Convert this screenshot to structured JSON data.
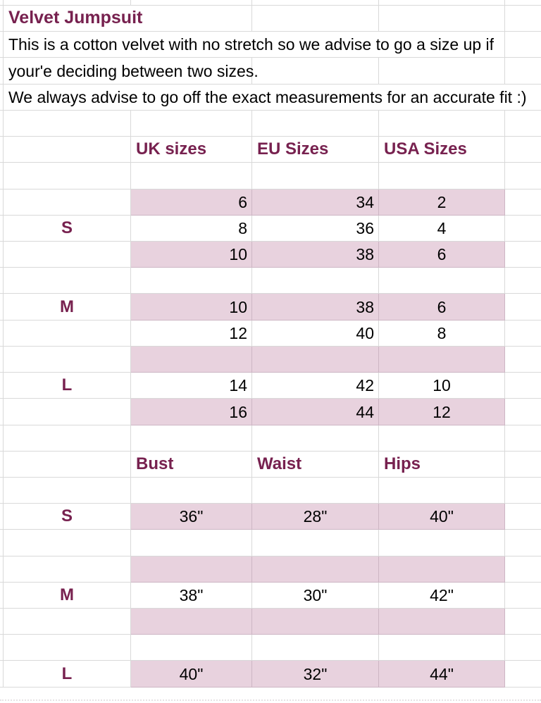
{
  "colors": {
    "accent": "#77214f",
    "pink": "#e8d2de",
    "grid": "#d9d9d9",
    "pinkline": "#cdb6c4"
  },
  "intro": {
    "title": "Velvet Jumpsuit",
    "note_line1": "This is a cotton velvet with no stretch so we advise to go a size up if",
    "note_line2": "your'e deciding between two sizes.",
    "note_line3": "We always advise to go off the exact measurements for an accurate fit :)"
  },
  "size_chart": {
    "col_headers": {
      "uk": "UK sizes",
      "eu": "EU Sizes",
      "usa": "USA Sizes"
    },
    "rows": [
      {
        "label": "",
        "uk": "6",
        "eu": "34",
        "usa": "2"
      },
      {
        "label": "S",
        "uk": "8",
        "eu": "36",
        "usa": "4"
      },
      {
        "label": "",
        "uk": "10",
        "eu": "38",
        "usa": "6"
      },
      {
        "label": "M",
        "uk": "10",
        "eu": "38",
        "usa": "6"
      },
      {
        "label": "",
        "uk": "12",
        "eu": "40",
        "usa": "8"
      },
      {
        "label": "L",
        "uk": "14",
        "eu": "42",
        "usa": "10"
      },
      {
        "label": "",
        "uk": "16",
        "eu": "44",
        "usa": "12"
      }
    ]
  },
  "measurement_chart": {
    "col_headers": {
      "bust": "Bust",
      "waist": "Waist",
      "hips": "Hips"
    },
    "rows": [
      {
        "label": "S",
        "bust": "36\"",
        "waist": "28\"",
        "hips": "40\""
      },
      {
        "label": "M",
        "bust": "38\"",
        "waist": "30\"",
        "hips": "42\""
      },
      {
        "label": "L",
        "bust": "40\"",
        "waist": "32\"",
        "hips": "44\""
      }
    ]
  }
}
